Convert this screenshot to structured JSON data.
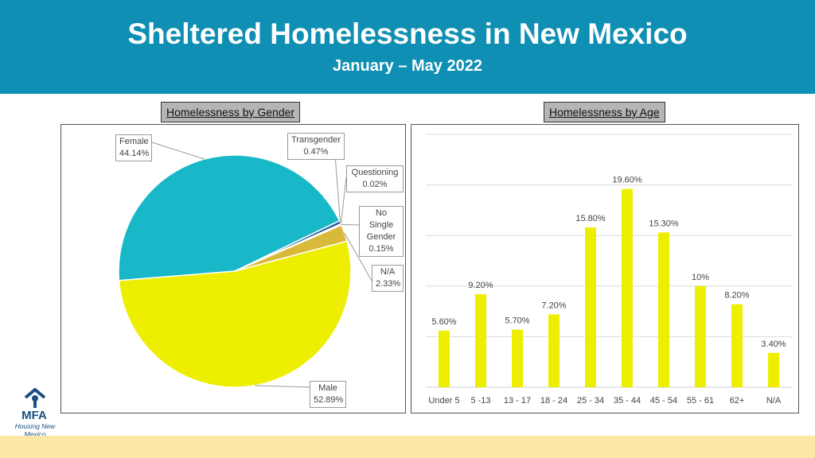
{
  "header": {
    "title": "Sheltered Homelessness in New Mexico",
    "subtitle": "January – May 2022"
  },
  "panels": {
    "gender_heading": "Homelessness by Gender",
    "age_heading": "Homelessness by Age"
  },
  "logo": {
    "name": "MFA",
    "tagline": "Housing New Mexico",
    "color": "#1a4f86"
  },
  "colors": {
    "header": "#0f8fb3",
    "footer": "#fde8a8",
    "bar": "#eeee00"
  },
  "chart_data": [
    {
      "type": "pie",
      "title": "Homelessness by Gender",
      "slices": [
        {
          "label": "Male",
          "value": 52.89,
          "display": "52.89%",
          "color": "#eeee00"
        },
        {
          "label": "Female",
          "value": 44.14,
          "display": "44.14%",
          "color": "#19b8c9"
        },
        {
          "label": "Transgender",
          "value": 0.47,
          "display": "0.47%",
          "color": "#2a5a9a"
        },
        {
          "label": "Questioning",
          "value": 0.02,
          "display": "0.02%",
          "color": "#8c8c8c"
        },
        {
          "label": "No Single Gender",
          "value": 0.15,
          "display": "0.15%",
          "color": "#4a7fc0"
        },
        {
          "label": "N/A",
          "value": 2.33,
          "display": "2.33%",
          "color": "#d9b93a"
        }
      ]
    },
    {
      "type": "bar",
      "title": "Homelessness by Age",
      "categories": [
        "Under 5",
        "5 -13",
        "13 - 17",
        "18 - 24",
        "25 - 34",
        "35 - 44",
        "45 - 54",
        "55 - 61",
        "62+",
        "N/A"
      ],
      "values": [
        5.6,
        9.2,
        5.7,
        7.2,
        15.8,
        19.6,
        15.3,
        10,
        8.2,
        3.4
      ],
      "labels": [
        "5.60%",
        "9.20%",
        "5.70%",
        "7.20%",
        "15.80%",
        "19.60%",
        "15.30%",
        "10%",
        "8.20%",
        "3.40%"
      ],
      "ylim": [
        0,
        25
      ],
      "grid": true
    }
  ]
}
